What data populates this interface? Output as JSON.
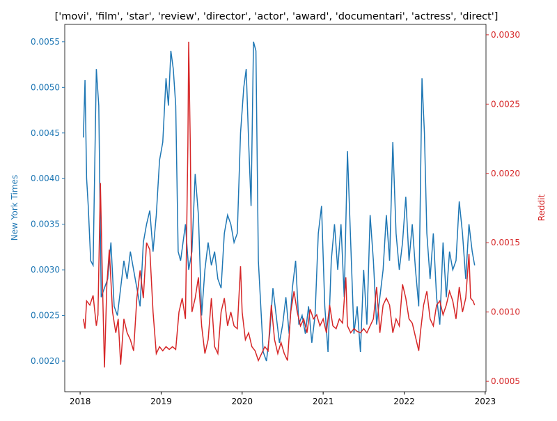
{
  "chart_data": {
    "type": "line",
    "title": "['movi', 'film', 'star', 'review', 'director', 'actor', 'award', 'documentari', 'actress', 'direct']",
    "ylabel": "New York Times",
    "y2label": "Reddit",
    "xlim": [
      2017.81,
      2023.01
    ],
    "xticks": [
      2018,
      2019,
      2020,
      2021,
      2022,
      2023
    ],
    "ylim": [
      0.001664,
      0.00569
    ],
    "yticks": [
      {
        "value": 0.002,
        "label": "0.0020"
      },
      {
        "value": 0.0025,
        "label": "0.0025"
      },
      {
        "value": 0.003,
        "label": "0.0030"
      },
      {
        "value": 0.0035,
        "label": "0.0035"
      },
      {
        "value": 0.004,
        "label": "0.0040"
      },
      {
        "value": 0.0045,
        "label": "0.0045"
      },
      {
        "value": 0.005,
        "label": "0.0050"
      },
      {
        "value": 0.0055,
        "label": "0.0055"
      }
    ],
    "y2lim": [
      0.000425,
      0.003075
    ],
    "y2ticks": [
      {
        "value": 0.0005,
        "label": "0.0005"
      },
      {
        "value": 0.001,
        "label": "0.0010"
      },
      {
        "value": 0.0015,
        "label": "0.0015"
      },
      {
        "value": 0.002,
        "label": "0.0020"
      },
      {
        "value": 0.0025,
        "label": "0.0025"
      },
      {
        "value": 0.003,
        "label": "0.0030"
      }
    ],
    "series": [
      {
        "name": "New York Times",
        "color": "#1f77b4",
        "x": [
          2018.04,
          2018.06,
          2018.08,
          2018.1,
          2018.13,
          2018.16,
          2018.2,
          2018.23,
          2018.26,
          2018.3,
          2018.34,
          2018.38,
          2018.42,
          2018.46,
          2018.5,
          2018.54,
          2018.58,
          2018.62,
          2018.66,
          2018.7,
          2018.74,
          2018.78,
          2018.82,
          2018.86,
          2018.9,
          2018.94,
          2018.98,
          2019.02,
          2019.06,
          2019.09,
          2019.12,
          2019.15,
          2019.18,
          2019.21,
          2019.24,
          2019.27,
          2019.3,
          2019.34,
          2019.38,
          2019.42,
          2019.46,
          2019.5,
          2019.54,
          2019.58,
          2019.62,
          2019.66,
          2019.7,
          2019.74,
          2019.78,
          2019.82,
          2019.86,
          2019.9,
          2019.94,
          2019.98,
          2020.02,
          2020.05,
          2020.08,
          2020.11,
          2020.14,
          2020.17,
          2020.2,
          2020.23,
          2020.26,
          2020.3,
          2020.34,
          2020.38,
          2020.42,
          2020.46,
          2020.5,
          2020.54,
          2020.58,
          2020.62,
          2020.66,
          2020.7,
          2020.74,
          2020.78,
          2020.82,
          2020.86,
          2020.9,
          2020.94,
          2020.98,
          2021.02,
          2021.06,
          2021.1,
          2021.14,
          2021.18,
          2021.22,
          2021.26,
          2021.3,
          2021.34,
          2021.38,
          2021.42,
          2021.46,
          2021.5,
          2021.54,
          2021.58,
          2021.62,
          2021.66,
          2021.7,
          2021.74,
          2021.78,
          2021.82,
          2021.86,
          2021.9,
          2021.94,
          2021.98,
          2022.02,
          2022.06,
          2022.1,
          2022.14,
          2022.18,
          2022.22,
          2022.25,
          2022.28,
          2022.32,
          2022.36,
          2022.4,
          2022.44,
          2022.48,
          2022.52,
          2022.56,
          2022.6,
          2022.64,
          2022.68,
          2022.72,
          2022.76,
          2022.8,
          2022.84,
          2022.87
        ],
        "values": [
          0.00445,
          0.00508,
          0.004,
          0.0037,
          0.0031,
          0.00305,
          0.0052,
          0.0048,
          0.0027,
          0.0028,
          0.0029,
          0.0033,
          0.0026,
          0.0025,
          0.0028,
          0.0031,
          0.0029,
          0.0032,
          0.003,
          0.0028,
          0.0026,
          0.0033,
          0.0035,
          0.00365,
          0.0032,
          0.0036,
          0.0042,
          0.0044,
          0.0051,
          0.0048,
          0.0054,
          0.0052,
          0.0048,
          0.0032,
          0.0031,
          0.0033,
          0.0035,
          0.003,
          0.0032,
          0.00405,
          0.0036,
          0.0025,
          0.003,
          0.0033,
          0.00305,
          0.0032,
          0.0029,
          0.0028,
          0.0034,
          0.0036,
          0.0035,
          0.0033,
          0.0034,
          0.0045,
          0.005,
          0.0052,
          0.0044,
          0.0037,
          0.0055,
          0.0054,
          0.0031,
          0.0026,
          0.0021,
          0.002,
          0.0023,
          0.0028,
          0.0025,
          0.0022,
          0.0024,
          0.0027,
          0.0023,
          0.0028,
          0.0031,
          0.0024,
          0.0025,
          0.0023,
          0.0026,
          0.0022,
          0.0025,
          0.0034,
          0.0037,
          0.0026,
          0.0021,
          0.0031,
          0.0035,
          0.003,
          0.0035,
          0.0027,
          0.0043,
          0.0033,
          0.0023,
          0.0026,
          0.0021,
          0.003,
          0.0024,
          0.0036,
          0.0031,
          0.0024,
          0.0027,
          0.003,
          0.0036,
          0.0031,
          0.0044,
          0.0034,
          0.003,
          0.0033,
          0.0038,
          0.0031,
          0.0035,
          0.003,
          0.0026,
          0.0051,
          0.0045,
          0.0034,
          0.0029,
          0.0034,
          0.0027,
          0.0024,
          0.0033,
          0.0027,
          0.0032,
          0.003,
          0.0031,
          0.00375,
          0.0034,
          0.0029,
          0.0035,
          0.0032,
          0.00305
        ]
      },
      {
        "name": "Reddit",
        "color": "#d62728",
        "axis": "y2",
        "x": [
          2018.04,
          2018.06,
          2018.08,
          2018.12,
          2018.16,
          2018.2,
          2018.22,
          2018.25,
          2018.28,
          2018.3,
          2018.33,
          2018.36,
          2018.4,
          2018.44,
          2018.47,
          2018.5,
          2018.54,
          2018.58,
          2018.62,
          2018.66,
          2018.7,
          2018.74,
          2018.78,
          2018.82,
          2018.86,
          2018.9,
          2018.94,
          2018.98,
          2019.02,
          2019.06,
          2019.1,
          2019.14,
          2019.18,
          2019.22,
          2019.26,
          2019.3,
          2019.33,
          2019.34,
          2019.36,
          2019.38,
          2019.42,
          2019.46,
          2019.5,
          2019.54,
          2019.58,
          2019.62,
          2019.66,
          2019.7,
          2019.74,
          2019.78,
          2019.82,
          2019.86,
          2019.9,
          2019.94,
          2019.98,
          2020.0,
          2020.04,
          2020.08,
          2020.12,
          2020.16,
          2020.2,
          2020.24,
          2020.28,
          2020.32,
          2020.36,
          2020.4,
          2020.44,
          2020.48,
          2020.52,
          2020.56,
          2020.6,
          2020.64,
          2020.68,
          2020.72,
          2020.76,
          2020.8,
          2020.84,
          2020.88,
          2020.92,
          2020.96,
          2021.0,
          2021.04,
          2021.08,
          2021.12,
          2021.16,
          2021.2,
          2021.24,
          2021.28,
          2021.3,
          2021.34,
          2021.38,
          2021.42,
          2021.46,
          2021.5,
          2021.54,
          2021.58,
          2021.62,
          2021.66,
          2021.7,
          2021.74,
          2021.78,
          2021.82,
          2021.86,
          2021.9,
          2021.94,
          2021.98,
          2022.02,
          2022.06,
          2022.1,
          2022.14,
          2022.18,
          2022.2,
          2022.24,
          2022.28,
          2022.32,
          2022.36,
          2022.4,
          2022.44,
          2022.48,
          2022.52,
          2022.56,
          2022.6,
          2022.64,
          2022.68,
          2022.72,
          2022.76,
          2022.8,
          2022.82,
          2022.85,
          2022.87
        ],
        "values": [
          0.00095,
          0.00088,
          0.00108,
          0.00105,
          0.00112,
          0.0009,
          0.00098,
          0.00193,
          0.0011,
          0.0006,
          0.0012,
          0.00145,
          0.001,
          0.00085,
          0.00095,
          0.00062,
          0.00095,
          0.00085,
          0.0008,
          0.00072,
          0.0011,
          0.0013,
          0.0011,
          0.0015,
          0.00145,
          0.001,
          0.0007,
          0.00075,
          0.00072,
          0.00075,
          0.00073,
          0.00075,
          0.00073,
          0.001,
          0.0011,
          0.00095,
          0.0022,
          0.00295,
          0.0022,
          0.001,
          0.0011,
          0.00125,
          0.0009,
          0.0007,
          0.0008,
          0.0011,
          0.00075,
          0.0007,
          0.001,
          0.0011,
          0.0009,
          0.001,
          0.0009,
          0.00088,
          0.00133,
          0.001,
          0.0008,
          0.00085,
          0.00075,
          0.00072,
          0.00065,
          0.0007,
          0.00075,
          0.00072,
          0.00105,
          0.0008,
          0.0007,
          0.00078,
          0.0007,
          0.00065,
          0.001,
          0.00115,
          0.001,
          0.0009,
          0.00095,
          0.00085,
          0.00102,
          0.00095,
          0.00098,
          0.0009,
          0.00095,
          0.00085,
          0.00105,
          0.0009,
          0.00088,
          0.00095,
          0.00092,
          0.00125,
          0.0009,
          0.00085,
          0.00088,
          0.00086,
          0.00085,
          0.00088,
          0.00085,
          0.0009,
          0.00095,
          0.00118,
          0.00085,
          0.00105,
          0.0011,
          0.00105,
          0.00085,
          0.00095,
          0.0009,
          0.0012,
          0.0011,
          0.00095,
          0.00092,
          0.00082,
          0.00072,
          0.00085,
          0.00105,
          0.00115,
          0.00095,
          0.0009,
          0.00105,
          0.00108,
          0.00098,
          0.00105,
          0.00115,
          0.00108,
          0.00095,
          0.00118,
          0.001,
          0.0011,
          0.00142,
          0.0011,
          0.00108,
          0.00105
        ]
      }
    ]
  }
}
